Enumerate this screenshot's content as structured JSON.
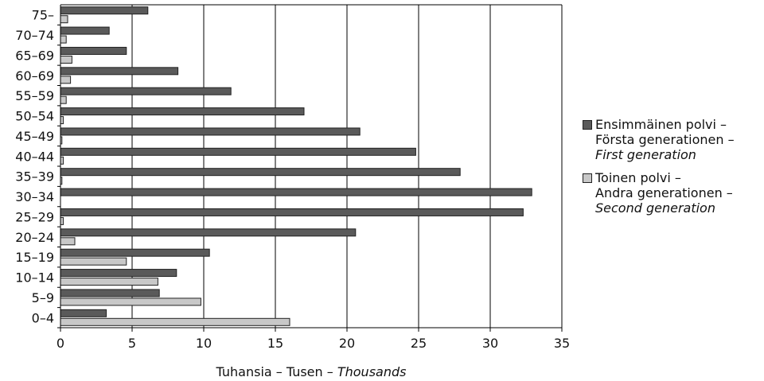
{
  "chart_data": {
    "type": "bar",
    "orientation": "horizontal",
    "categories": [
      "0–4",
      "5–9",
      "10–14",
      "15–19",
      "20–24",
      "25–29",
      "30–34",
      "35–39",
      "40–44",
      "45–49",
      "50–54",
      "55–59",
      "60–69",
      "65–69",
      "70–74",
      "75–"
    ],
    "series": [
      {
        "name": "Ensimmäinen polvi – Första generationen – First generation",
        "color": "#5a5a5a",
        "values": [
          3.2,
          6.9,
          8.1,
          10.4,
          20.6,
          32.3,
          32.9,
          27.9,
          24.8,
          20.9,
          17.0,
          11.9,
          8.2,
          4.6,
          3.4,
          6.1
        ]
      },
      {
        "name": "Toinen polvi – Andra generationen – Second generation",
        "color": "#c8c8c8",
        "values": [
          16.0,
          9.8,
          6.8,
          4.6,
          1.0,
          0.2,
          0.0,
          0.1,
          0.2,
          0.1,
          0.2,
          0.4,
          0.7,
          0.8,
          0.4,
          0.5
        ]
      }
    ],
    "x_ticks": [
      0,
      5,
      10,
      15,
      20,
      25,
      30,
      35
    ],
    "xlim": [
      0,
      35
    ],
    "xlabel": {
      "fi": "Tuhansia",
      "sv": "Tusen",
      "en": "Thousands"
    },
    "grid": "vertical",
    "legend_position": "right"
  },
  "legend": [
    {
      "fi": "Ensimmäinen polvi –",
      "sv": "Första generationen –",
      "en": "First generation",
      "color": "#5a5a5a"
    },
    {
      "fi": "Toinen polvi –",
      "sv": "Andra generationen –",
      "en": "Second generation",
      "color": "#c8c8c8"
    }
  ]
}
